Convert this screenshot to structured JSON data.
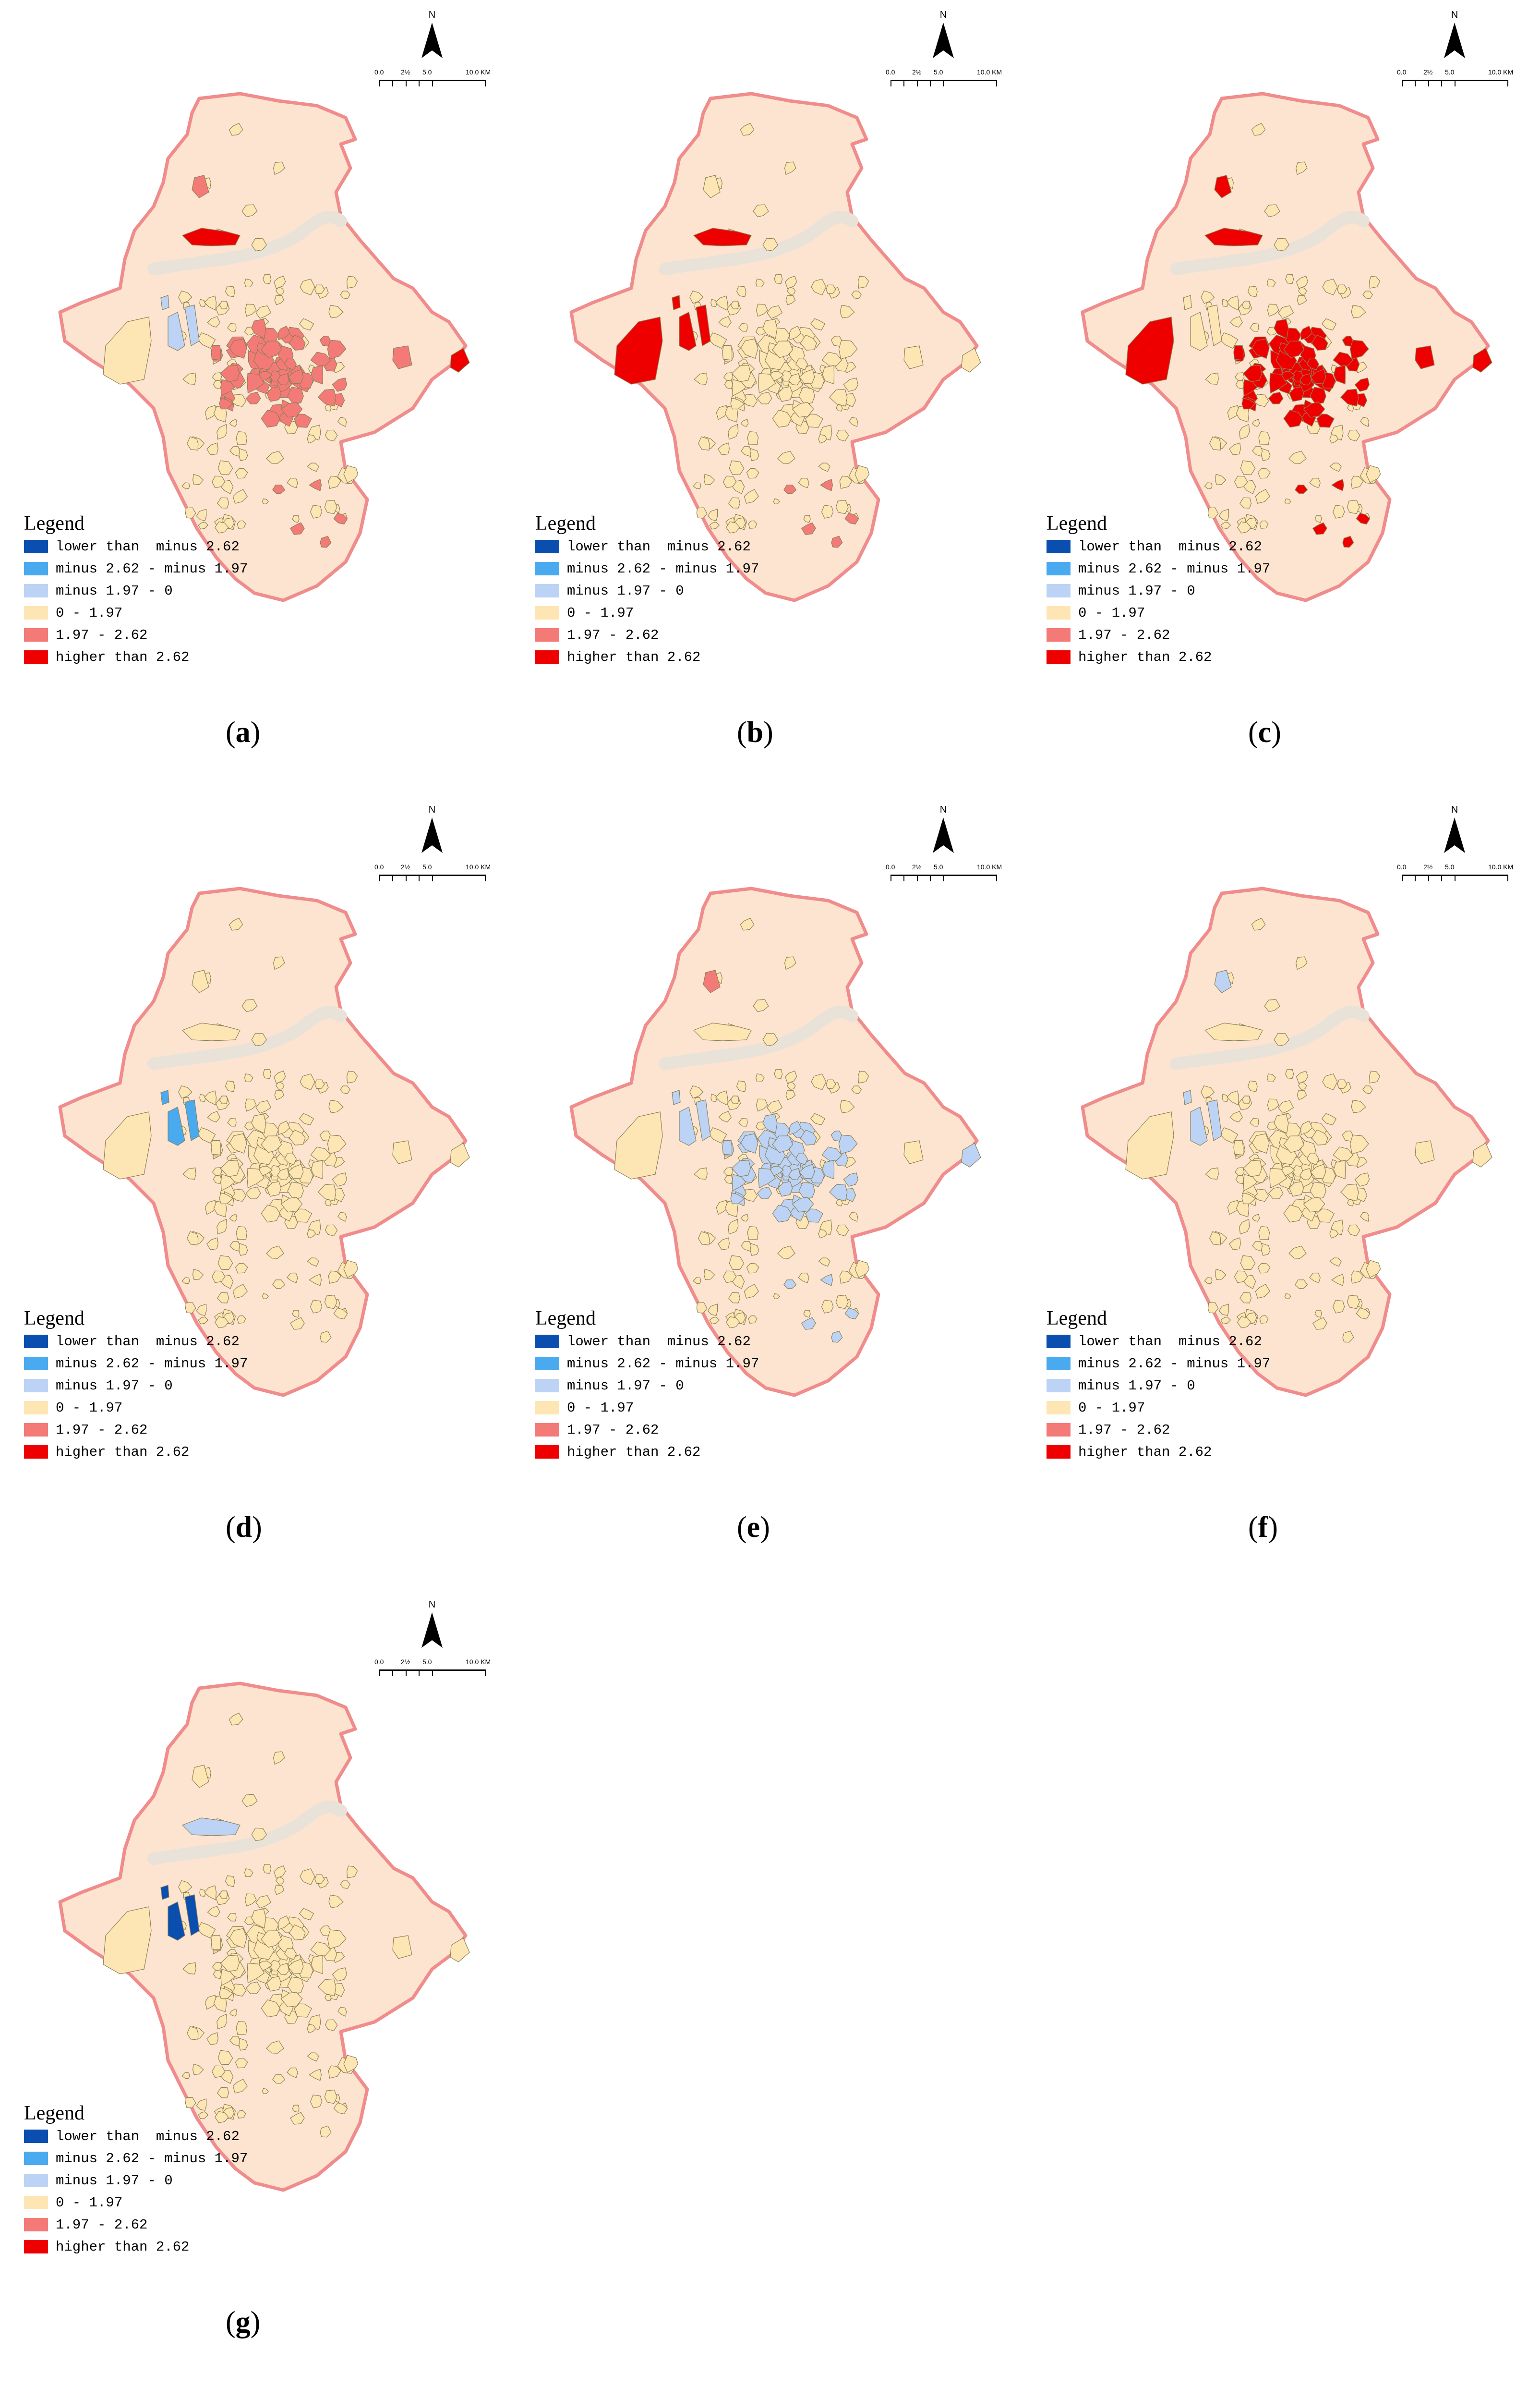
{
  "north_label": "N",
  "scale_labels": [
    "0.0",
    "2½",
    "5.0",
    "10.0 KM"
  ],
  "legend": {
    "title": "Legend",
    "classes": [
      {
        "label": "lower than  minus 2.62",
        "color": "#0a4fb0"
      },
      {
        "label": "minus 2.62 - minus 1.97",
        "color": "#4aaaf0"
      },
      {
        "label": "minus 1.97 - 0",
        "color": "#bcd3f5"
      },
      {
        "label": "0 - 1.97",
        "color": "#fde6b4"
      },
      {
        "label": "1.97 - 2.62",
        "color": "#f47a78"
      },
      {
        "label": "higher than 2.62",
        "color": "#ee0000"
      }
    ]
  },
  "colors": {
    "region_fill": "#fde4d0",
    "region_stroke": "#f08c8c",
    "river": "#e9e2d8",
    "parcel_stroke": "#8a7f55"
  },
  "panels": [
    {
      "caption_open": "(",
      "caption_letter": "a",
      "caption_close": ")",
      "highlights": {
        "center": "#f47a78",
        "nw_strip": "#ee0000",
        "north_parcel": "#f47a78",
        "east_edge": "#ee0000",
        "east_parcel": "#f47a78",
        "west_big": "#fde6b4",
        "west_cluster": "#bcd3f5",
        "south_parcels": "#f47a78"
      }
    },
    {
      "caption_open": "(",
      "caption_letter": "b",
      "caption_close": ")",
      "highlights": {
        "center": "#fde6b4",
        "nw_strip": "#ee0000",
        "north_parcel": "#fde6b4",
        "east_edge": "#fde6b4",
        "east_parcel": "#fde6b4",
        "west_big": "#ee0000",
        "west_cluster": "#ee0000",
        "south_parcels": "#f47a78"
      }
    },
    {
      "caption_open": "(",
      "caption_letter": "c",
      "caption_close": ")",
      "highlights": {
        "center": "#ee0000",
        "nw_strip": "#ee0000",
        "north_parcel": "#ee0000",
        "east_edge": "#ee0000",
        "east_parcel": "#ee0000",
        "west_big": "#ee0000",
        "west_cluster": "#fde6b4",
        "south_parcels": "#ee0000"
      }
    },
    {
      "caption_open": "(",
      "caption_letter": "d",
      "caption_close": ")",
      "highlights": {
        "center": "#fde6b4",
        "nw_strip": "#fde6b4",
        "north_parcel": "#fde6b4",
        "east_edge": "#fde6b4",
        "east_parcel": "#fde6b4",
        "west_big": "#fde6b4",
        "west_cluster": "#4aaaf0",
        "south_parcels": "#fde6b4"
      }
    },
    {
      "caption_open": "(",
      "caption_letter": "e",
      "caption_close": ")",
      "highlights": {
        "center": "#bcd3f5",
        "nw_strip": "#fde6b4",
        "north_parcel": "#f47a78",
        "east_edge": "#bcd3f5",
        "east_parcel": "#fde6b4",
        "west_big": "#fde6b4",
        "west_cluster": "#bcd3f5",
        "south_parcels": "#bcd3f5"
      }
    },
    {
      "caption_open": "(",
      "caption_letter": "f",
      "caption_close": ")",
      "highlights": {
        "center": "#fde6b4",
        "nw_strip": "#fde6b4",
        "north_parcel": "#bcd3f5",
        "east_edge": "#fde6b4",
        "east_parcel": "#fde6b4",
        "west_big": "#fde6b4",
        "west_cluster": "#bcd3f5",
        "south_parcels": "#fde6b4"
      }
    },
    {
      "caption_open": "(",
      "caption_letter": "g",
      "caption_close": ")",
      "highlights": {
        "center": "#fde6b4",
        "nw_strip": "#bcd3f5",
        "north_parcel": "#fde6b4",
        "east_edge": "#fde6b4",
        "east_parcel": "#fde6b4",
        "west_big": "#fde6b4",
        "west_cluster": "#0a4fb0",
        "south_parcels": "#fde6b4"
      }
    }
  ]
}
